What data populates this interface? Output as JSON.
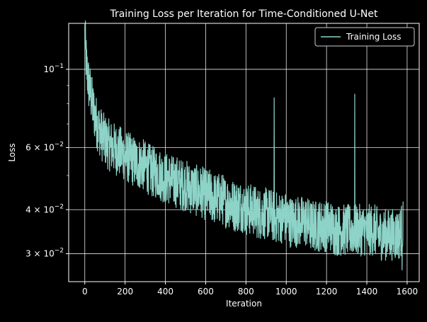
{
  "chart_data": {
    "type": "line",
    "title": "Training Loss per Iteration for Time-Conditioned U-Net",
    "xlabel": "Iteration",
    "ylabel": "Loss",
    "xlim": [
      -80,
      1660
    ],
    "ylim": [
      0.025,
      0.135
    ],
    "yscale": "log",
    "grid": true,
    "legend_location": "top-right",
    "x_ticks": [
      0,
      200,
      400,
      600,
      800,
      1000,
      1200,
      1400,
      1600
    ],
    "x_tick_labels": [
      "0",
      "200",
      "400",
      "600",
      "800",
      "1000",
      "1200",
      "1400",
      "1600"
    ],
    "y_ticks": [
      0.1,
      0.06,
      0.04,
      0.03
    ],
    "y_tick_labels": [
      {
        "mantissa": "",
        "base": "10",
        "exp": "−1"
      },
      {
        "mantissa": "6 × ",
        "base": "10",
        "exp": "−2"
      },
      {
        "mantissa": "4 × ",
        "base": "10",
        "exp": "−2"
      },
      {
        "mantissa": "3 × ",
        "base": "10",
        "exp": "−2"
      }
    ],
    "y_minor_ticks": [
      0.05,
      0.07,
      0.08,
      0.09
    ],
    "series": [
      {
        "name": "Training Loss",
        "color": "#8dd3c7",
        "x": [
          0,
          5,
          10,
          20,
          30,
          40,
          50,
          60,
          70,
          80,
          90,
          100,
          120,
          140,
          160,
          180,
          200,
          220,
          240,
          260,
          280,
          300,
          320,
          340,
          360,
          380,
          400,
          420,
          440,
          460,
          480,
          500,
          520,
          540,
          560,
          580,
          600,
          620,
          640,
          660,
          680,
          700,
          720,
          740,
          760,
          780,
          800,
          820,
          840,
          860,
          880,
          900,
          920,
          940,
          960,
          980,
          1000,
          1020,
          1040,
          1060,
          1080,
          1100,
          1120,
          1140,
          1160,
          1180,
          1200,
          1220,
          1240,
          1260,
          1280,
          1300,
          1320,
          1340,
          1360,
          1380,
          1400,
          1420,
          1440,
          1460,
          1480,
          1500,
          1520,
          1540,
          1560,
          1580
        ],
        "values": [
          0.125,
          0.11,
          0.1,
          0.09,
          0.085,
          0.078,
          0.074,
          0.07,
          0.068,
          0.066,
          0.064,
          0.063,
          0.061,
          0.06,
          0.059,
          0.058,
          0.057,
          0.056,
          0.055,
          0.054,
          0.054,
          0.053,
          0.052,
          0.051,
          0.051,
          0.05,
          0.049,
          0.049,
          0.048,
          0.048,
          0.047,
          0.047,
          0.046,
          0.046,
          0.045,
          0.045,
          0.044,
          0.044,
          0.043,
          0.043,
          0.043,
          0.042,
          0.042,
          0.041,
          0.041,
          0.041,
          0.04,
          0.04,
          0.04,
          0.039,
          0.039,
          0.039,
          0.039,
          0.038,
          0.038,
          0.038,
          0.038,
          0.037,
          0.037,
          0.037,
          0.037,
          0.037,
          0.036,
          0.036,
          0.036,
          0.036,
          0.036,
          0.036,
          0.035,
          0.035,
          0.035,
          0.035,
          0.035,
          0.035,
          0.035,
          0.035,
          0.035,
          0.035,
          0.035,
          0.034,
          0.034,
          0.034,
          0.034,
          0.034,
          0.034,
          0.036
        ]
      }
    ],
    "spikes": [
      {
        "x": 940,
        "y": 0.083
      },
      {
        "x": 1340,
        "y": 0.085
      },
      {
        "x": 1575,
        "y": 0.027
      }
    ]
  }
}
